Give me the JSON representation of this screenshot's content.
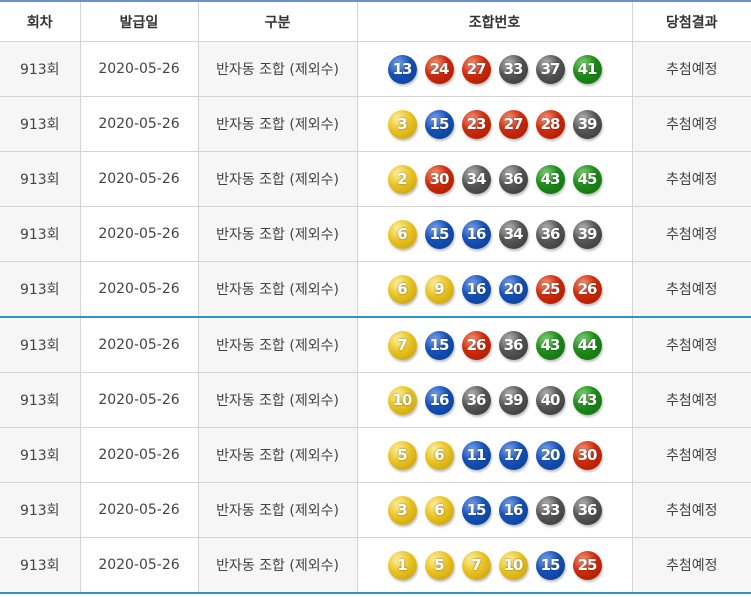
{
  "headers": [
    "회차",
    "발급일",
    "구분",
    "조합번호",
    "당첨결과"
  ],
  "ball_colors": {
    "1-10": "#e8c221",
    "11-20": "#1451b8",
    "21-30": "#cf2a0b",
    "31-40": "#555555",
    "41-45": "#1d8a19"
  },
  "rows": [
    {
      "round": "913회",
      "date": "2020-05-26",
      "type": "반자동 조합 (제외수)",
      "numbers": [
        13,
        24,
        27,
        33,
        37,
        41
      ],
      "result": "추첨예정"
    },
    {
      "round": "913회",
      "date": "2020-05-26",
      "type": "반자동 조합 (제외수)",
      "numbers": [
        3,
        15,
        23,
        27,
        28,
        39
      ],
      "result": "추첨예정"
    },
    {
      "round": "913회",
      "date": "2020-05-26",
      "type": "반자동 조합 (제외수)",
      "numbers": [
        2,
        30,
        34,
        36,
        43,
        45
      ],
      "result": "추첨예정"
    },
    {
      "round": "913회",
      "date": "2020-05-26",
      "type": "반자동 조합 (제외수)",
      "numbers": [
        6,
        15,
        16,
        34,
        36,
        39
      ],
      "result": "추첨예정"
    },
    {
      "round": "913회",
      "date": "2020-05-26",
      "type": "반자동 조합 (제외수)",
      "numbers": [
        6,
        9,
        16,
        20,
        25,
        26
      ],
      "result": "추첨예정"
    },
    {
      "round": "913회",
      "date": "2020-05-26",
      "type": "반자동 조합 (제외수)",
      "numbers": [
        7,
        15,
        26,
        36,
        43,
        44
      ],
      "result": "추첨예정"
    },
    {
      "round": "913회",
      "date": "2020-05-26",
      "type": "반자동 조합 (제외수)",
      "numbers": [
        10,
        16,
        36,
        39,
        40,
        43
      ],
      "result": "추첨예정"
    },
    {
      "round": "913회",
      "date": "2020-05-26",
      "type": "반자동 조합 (제외수)",
      "numbers": [
        5,
        6,
        11,
        17,
        20,
        30
      ],
      "result": "추첨예정"
    },
    {
      "round": "913회",
      "date": "2020-05-26",
      "type": "반자동 조합 (제외수)",
      "numbers": [
        3,
        6,
        15,
        16,
        33,
        36
      ],
      "result": "추첨예정"
    },
    {
      "round": "913회",
      "date": "2020-05-26",
      "type": "반자동 조합 (제외수)",
      "numbers": [
        1,
        5,
        7,
        10,
        15,
        25
      ],
      "result": "추첨예정"
    }
  ]
}
